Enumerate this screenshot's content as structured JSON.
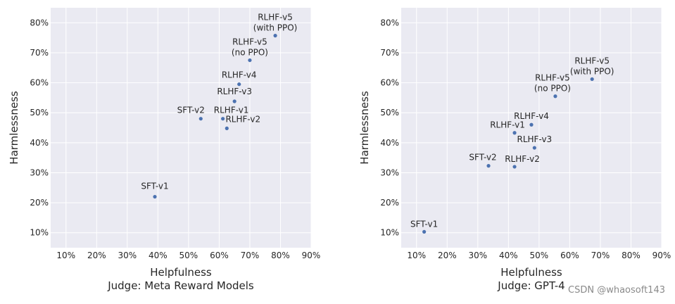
{
  "chart_data": [
    {
      "type": "scatter",
      "xlabel": "Helpfulness",
      "subtitle": "Judge: Meta Reward Models",
      "ylabel": "Harmlessness",
      "xlim": [
        5,
        90
      ],
      "ylim": [
        5,
        85
      ],
      "xticks": [
        "10%",
        "20%",
        "30%",
        "40%",
        "50%",
        "60%",
        "70%",
        "80%",
        "90%"
      ],
      "yticks": [
        "10%",
        "20%",
        "30%",
        "40%",
        "50%",
        "60%",
        "70%",
        "80%"
      ],
      "grid": true,
      "color": "#4c72b0",
      "points": [
        {
          "label": "SFT-v1",
          "x": 39,
          "y": 22
        },
        {
          "label": "SFT-v2",
          "x": 54,
          "y": 48
        },
        {
          "label": "RLHF-v1",
          "x": 61.2,
          "y": 48
        },
        {
          "label": "RLHF-v2",
          "x": 62.5,
          "y": 44.8
        },
        {
          "label": "RLHF-v3",
          "x": 65,
          "y": 53.8
        },
        {
          "label": "RLHF-v4",
          "x": 66.5,
          "y": 59.5
        },
        {
          "label": "RLHF-v5\n(no PPO)",
          "x": 70,
          "y": 67.5
        },
        {
          "label": "RLHF-v5\n(with PPO)",
          "x": 78.3,
          "y": 75.7
        }
      ]
    },
    {
      "type": "scatter",
      "xlabel": "Helpfulness",
      "subtitle": "Judge: GPT-4",
      "ylabel": "Harmlessness",
      "xlim": [
        5,
        90
      ],
      "ylim": [
        5,
        85
      ],
      "xticks": [
        "10%",
        "20%",
        "30%",
        "40%",
        "50%",
        "60%",
        "70%",
        "80%",
        "90%"
      ],
      "yticks": [
        "10%",
        "20%",
        "30%",
        "40%",
        "50%",
        "60%",
        "70%",
        "80%"
      ],
      "grid": true,
      "color": "#4c72b0",
      "points": [
        {
          "label": "SFT-v1",
          "x": 12.5,
          "y": 10.3
        },
        {
          "label": "SFT-v2",
          "x": 33.5,
          "y": 32.3
        },
        {
          "label": "RLHF-v2",
          "x": 42,
          "y": 32
        },
        {
          "label": "RLHF-v1",
          "x": 42,
          "y": 43.3
        },
        {
          "label": "RLHF-v4",
          "x": 47.5,
          "y": 46
        },
        {
          "label": "RLHF-v3",
          "x": 48.5,
          "y": 38.3
        },
        {
          "label": "RLHF-v5\n(no PPO)",
          "x": 55.3,
          "y": 55.5
        },
        {
          "label": "RLHF-v5\n(with PPO)",
          "x": 67.3,
          "y": 61.2
        }
      ]
    }
  ],
  "watermark": "CSDN @whaosoft143"
}
